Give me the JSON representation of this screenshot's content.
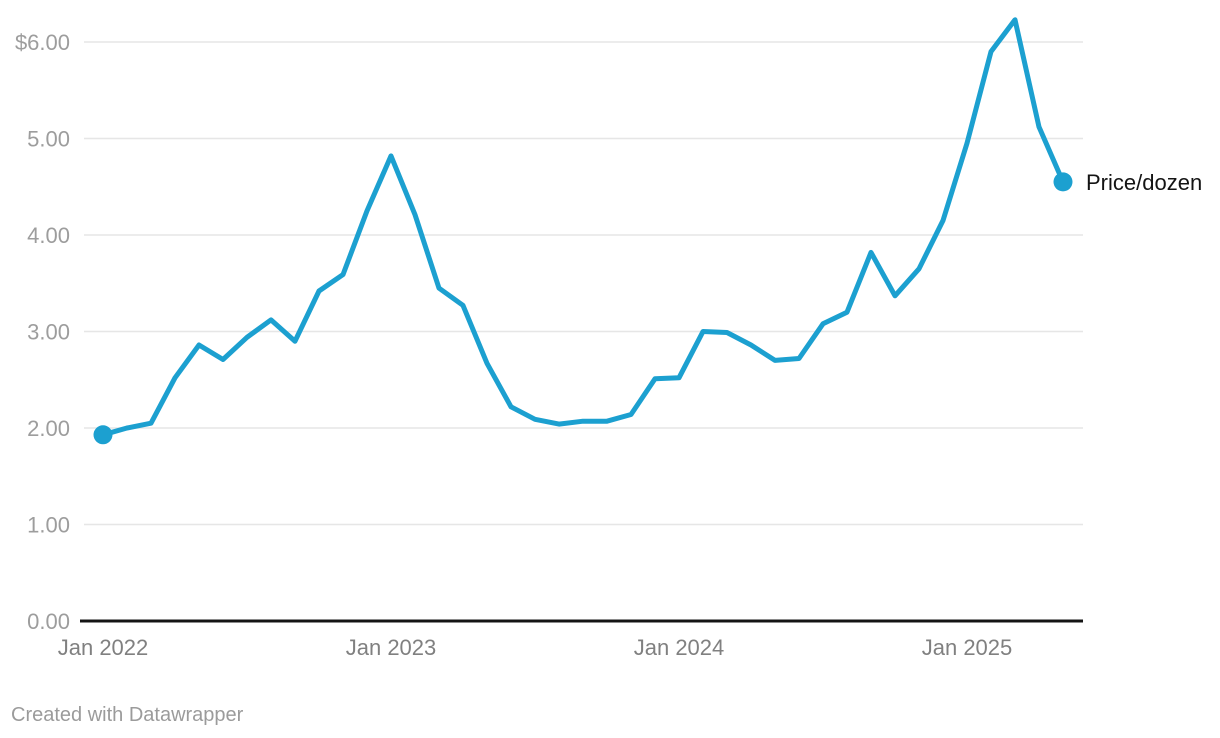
{
  "chart_data": {
    "type": "line",
    "title": "",
    "series_label": "Price/dozen",
    "line_color": "#1ca0d0",
    "x": [
      "Jan 2022",
      "Feb 2022",
      "Mar 2022",
      "Apr 2022",
      "May 2022",
      "Jun 2022",
      "Jul 2022",
      "Aug 2022",
      "Sep 2022",
      "Oct 2022",
      "Nov 2022",
      "Dec 2022",
      "Jan 2023",
      "Feb 2023",
      "Mar 2023",
      "Apr 2023",
      "May 2023",
      "Jun 2023",
      "Jul 2023",
      "Aug 2023",
      "Sep 2023",
      "Oct 2023",
      "Nov 2023",
      "Dec 2023",
      "Jan 2024",
      "Feb 2024",
      "Mar 2024",
      "Apr 2024",
      "May 2024",
      "Jun 2024",
      "Jul 2024",
      "Aug 2024",
      "Sep 2024",
      "Oct 2024",
      "Nov 2024",
      "Dec 2024",
      "Jan 2025",
      "Feb 2025",
      "Mar 2025",
      "Apr 2025",
      "May 2025"
    ],
    "values": [
      1.93,
      2.0,
      2.05,
      2.52,
      2.86,
      2.71,
      2.94,
      3.12,
      2.9,
      3.42,
      3.59,
      4.25,
      4.82,
      4.21,
      3.45,
      3.27,
      2.67,
      2.22,
      2.09,
      2.04,
      2.07,
      2.07,
      2.14,
      2.51,
      2.52,
      3.0,
      2.99,
      2.86,
      2.7,
      2.72,
      3.08,
      3.2,
      3.82,
      3.37,
      3.65,
      4.15,
      4.95,
      5.9,
      6.23,
      5.12,
      4.55
    ],
    "x_axis": {
      "ticks": [
        {
          "index": 0,
          "label": "Jan 2022"
        },
        {
          "index": 12,
          "label": "Jan 2023"
        },
        {
          "index": 24,
          "label": "Jan 2024"
        },
        {
          "index": 36,
          "label": "Jan 2025"
        }
      ]
    },
    "y_axis": {
      "ticks": [
        {
          "value": 0,
          "label": "0.00"
        },
        {
          "value": 1,
          "label": "1.00"
        },
        {
          "value": 2,
          "label": "2.00"
        },
        {
          "value": 3,
          "label": "3.00"
        },
        {
          "value": 4,
          "label": "4.00"
        },
        {
          "value": 5,
          "label": "5.00"
        },
        {
          "value": 6,
          "label": "$6.00"
        }
      ]
    },
    "ylim": [
      0,
      6.45
    ],
    "grid": "horizontal",
    "legend_position": "end-of-line",
    "point_markers": "first-and-last"
  },
  "colors": {
    "line": "#1ca0d0",
    "gridline": "#e6e6e6",
    "baseline": "#141414",
    "y_tick_text": "#9d9d9d",
    "x_tick_text": "#808080",
    "legend_text": "#141414",
    "attribution_text": "#9b9b9b"
  },
  "attribution": {
    "text": "Created with Datawrapper"
  }
}
